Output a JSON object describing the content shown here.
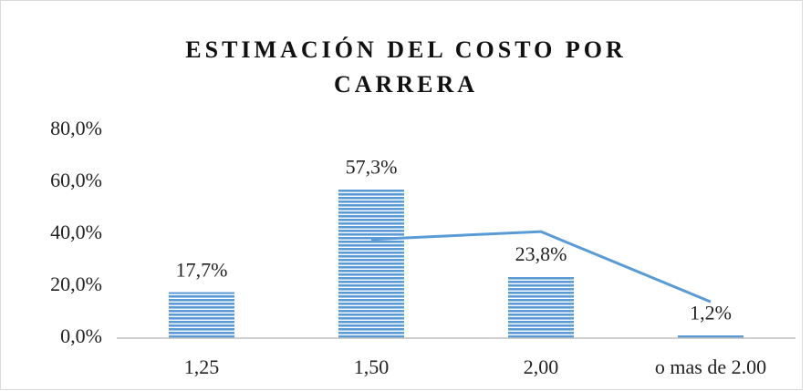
{
  "chart_data": {
    "type": "bar",
    "title": "ESTIMACIÓN DEL COSTO POR CARRERA",
    "categories": [
      "1,25",
      "1,50",
      "2,00",
      "o mas de 2.00"
    ],
    "series": [
      {
        "type": "bar",
        "color": "#5b9bd5",
        "values": [
          17.7,
          57.3,
          23.8,
          1.2
        ],
        "value_labels": [
          "17,7%",
          "57,3%",
          "23,8%",
          "1,2%"
        ]
      },
      {
        "type": "line",
        "color": "#5b9bd5",
        "values": [
          null,
          38,
          41,
          14
        ]
      }
    ],
    "ylim": [
      0,
      80
    ],
    "yticks": [
      {
        "value": 0,
        "label": "0,0%"
      },
      {
        "value": 20,
        "label": "20,0%"
      },
      {
        "value": 40,
        "label": "40,0%"
      },
      {
        "value": 60,
        "label": "60,0%"
      },
      {
        "value": 80,
        "label": "80,0%"
      }
    ],
    "grid": false
  }
}
